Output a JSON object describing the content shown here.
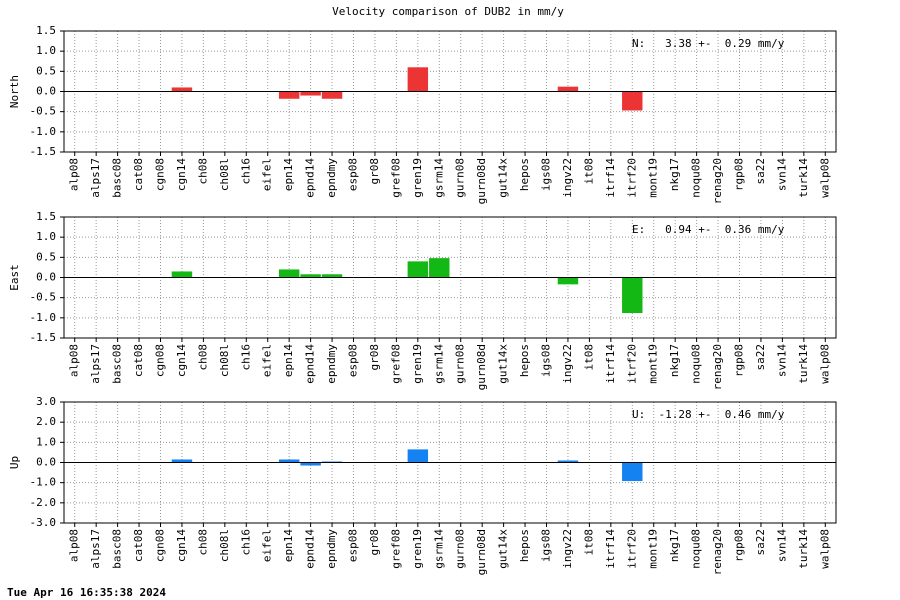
{
  "title": "Velocity comparison of DUB2 in mm/y",
  "timestamp": "Tue Apr 16 16:35:38 2024",
  "chart_data": [
    {
      "type": "bar",
      "ylabel": "North",
      "annotation": "N:   3.38 +-  0.29 mm/y",
      "color": "#ec3434",
      "grid": true,
      "categories": [
        "alp08",
        "alps17",
        "basc08",
        "cat08",
        "cgn08",
        "cgn14",
        "ch08",
        "ch08l",
        "ch16",
        "eifel",
        "epn14",
        "epnd14",
        "epndmy",
        "esp08",
        "gr08",
        "gref08",
        "gren19",
        "gsrm14",
        "gurn08",
        "gurn08d",
        "gut14x",
        "hepos",
        "igs08",
        "ingv22",
        "it08",
        "itrf14",
        "itrf20",
        "mont19",
        "nkg17",
        "noqu08",
        "renag20",
        "rgp08",
        "sa22",
        "svn14",
        "turk14",
        "walp08"
      ],
      "values": [
        null,
        null,
        null,
        null,
        null,
        0.1,
        null,
        null,
        null,
        null,
        -0.18,
        -0.1,
        -0.18,
        null,
        null,
        null,
        0.6,
        null,
        null,
        null,
        null,
        null,
        null,
        0.12,
        null,
        null,
        -0.47,
        null,
        null,
        null,
        null,
        null,
        null,
        null,
        null,
        null
      ],
      "ylim": [
        -1.5,
        1.5
      ],
      "yticks": [
        {
          "value": -1.5,
          "label": "-1.5"
        },
        {
          "value": -1.0,
          "label": "-1.0"
        },
        {
          "value": -0.5,
          "label": "-0.5"
        },
        {
          "value": 0,
          "label": "0.0"
        },
        {
          "value": 0.5,
          "label": "0.5"
        },
        {
          "value": 1.0,
          "label": "1.0"
        },
        {
          "value": 1.5,
          "label": "1.5"
        }
      ]
    },
    {
      "type": "bar",
      "ylabel": "East",
      "annotation": "E:   0.94 +-  0.36 mm/y",
      "color": "#14b814",
      "grid": true,
      "categories": [
        "alp08",
        "alps17",
        "basc08",
        "cat08",
        "cgn08",
        "cgn14",
        "ch08",
        "ch08l",
        "ch16",
        "eifel",
        "epn14",
        "epnd14",
        "epndmy",
        "esp08",
        "gr08",
        "gref08",
        "gren19",
        "gsrm14",
        "gurn08",
        "gurn08d",
        "gut14x",
        "hepos",
        "igs08",
        "ingv22",
        "it08",
        "itrf14",
        "itrf20",
        "mont19",
        "nkg17",
        "noqu08",
        "renag20",
        "rgp08",
        "sa22",
        "svn14",
        "turk14",
        "walp08"
      ],
      "values": [
        null,
        null,
        null,
        null,
        null,
        0.15,
        null,
        null,
        null,
        null,
        0.2,
        0.08,
        0.08,
        null,
        null,
        null,
        0.4,
        0.48,
        null,
        null,
        null,
        null,
        null,
        -0.17,
        null,
        null,
        -0.88,
        null,
        null,
        null,
        null,
        null,
        null,
        null,
        null,
        null
      ],
      "ylim": [
        -1.5,
        1.5
      ],
      "yticks": [
        {
          "value": -1.5,
          "label": "-1.5"
        },
        {
          "value": -1.0,
          "label": "-1.0"
        },
        {
          "value": -0.5,
          "label": "-0.5"
        },
        {
          "value": 0,
          "label": "0.0"
        },
        {
          "value": 0.5,
          "label": "0.5"
        },
        {
          "value": 1.0,
          "label": "1.0"
        },
        {
          "value": 1.5,
          "label": "1.5"
        }
      ]
    },
    {
      "type": "bar",
      "ylabel": "Up",
      "annotation": "U:  -1.28 +-  0.46 mm/y",
      "color": "#1482f0",
      "grid": true,
      "categories": [
        "alp08",
        "alps17",
        "basc08",
        "cat08",
        "cgn08",
        "cgn14",
        "ch08",
        "ch08l",
        "ch16",
        "eifel",
        "epn14",
        "epnd14",
        "epndmy",
        "esp08",
        "gr08",
        "gref08",
        "gren19",
        "gsrm14",
        "gurn08",
        "gurn08d",
        "gut14x",
        "hepos",
        "igs08",
        "ingv22",
        "it08",
        "itrf14",
        "itrf20",
        "mont19",
        "nkg17",
        "noqu08",
        "renag20",
        "rgp08",
        "sa22",
        "svn14",
        "turk14",
        "walp08"
      ],
      "values": [
        null,
        null,
        null,
        null,
        null,
        0.15,
        null,
        null,
        null,
        null,
        0.15,
        -0.15,
        0.05,
        null,
        null,
        null,
        0.65,
        null,
        null,
        null,
        null,
        null,
        null,
        0.1,
        null,
        null,
        -0.92,
        null,
        null,
        null,
        null,
        null,
        null,
        null,
        null,
        null
      ],
      "ylim": [
        -3.0,
        3.0
      ],
      "yticks": [
        {
          "value": -3.0,
          "label": "-3.0"
        },
        {
          "value": -2.0,
          "label": "-2.0"
        },
        {
          "value": -1.0,
          "label": "-1.0"
        },
        {
          "value": 0,
          "label": "0.0"
        },
        {
          "value": 1.0,
          "label": "1.0"
        },
        {
          "value": 2.0,
          "label": "2.0"
        },
        {
          "value": 3.0,
          "label": "3.0"
        }
      ]
    }
  ]
}
